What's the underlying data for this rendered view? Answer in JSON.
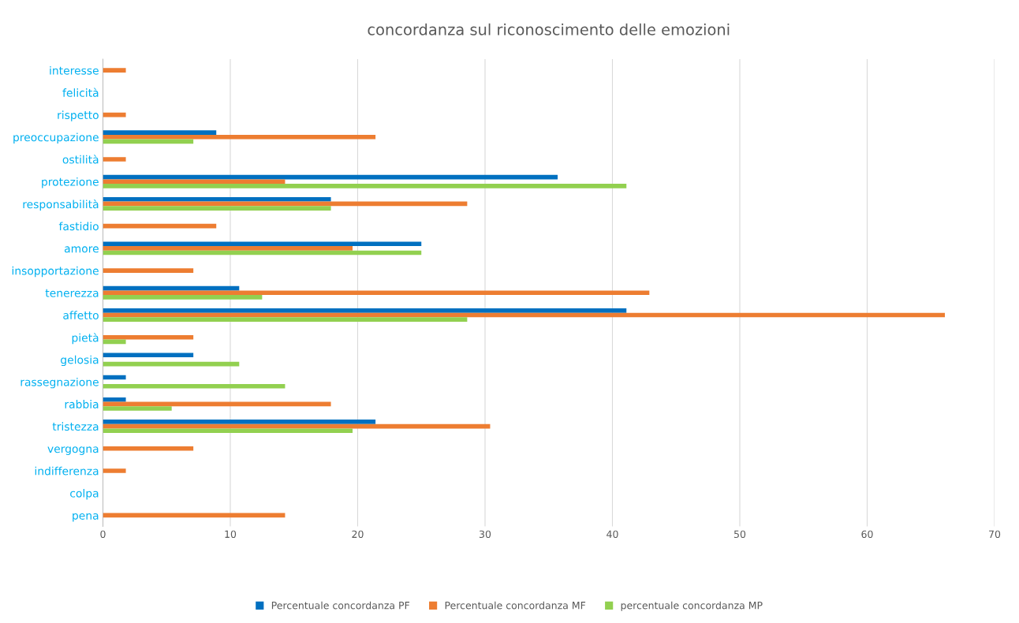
{
  "chart_data": {
    "type": "bar",
    "orientation": "horizontal",
    "title": "concordanza sul riconoscimento delle emozioni",
    "categories": [
      "interesse",
      "felicità",
      "rispetto",
      "preoccupazione",
      "ostilità",
      "protezione",
      "responsabilità",
      "fastidio",
      "amore",
      "insopportazione",
      "tenerezza",
      "affetto",
      "pietà",
      "gelosia",
      "rassegnazione",
      "rabbia",
      "tristezza",
      "vergogna",
      "indifferenza",
      "colpa",
      "pena"
    ],
    "series": [
      {
        "name": "Percentuale concordanza PF",
        "color": "#0070c0",
        "values": [
          0,
          0,
          0,
          8.9,
          0,
          35.7,
          17.9,
          0,
          25,
          0,
          10.7,
          41.1,
          0,
          7.1,
          1.8,
          1.8,
          21.4,
          0,
          0,
          0,
          0
        ]
      },
      {
        "name": "Percentuale concordanza MF",
        "color": "#ed7d31",
        "values": [
          1.8,
          0,
          1.8,
          21.4,
          1.8,
          14.3,
          28.6,
          8.9,
          19.6,
          7.1,
          42.9,
          66.1,
          7.1,
          0,
          0,
          17.9,
          30.4,
          7.1,
          1.8,
          0,
          14.3
        ]
      },
      {
        "name": "percentuale concordanza MP",
        "color": "#92d050",
        "values": [
          0,
          0,
          0,
          7.1,
          0,
          41.1,
          17.9,
          0,
          25,
          0,
          12.5,
          28.6,
          1.8,
          10.7,
          14.3,
          5.4,
          19.6,
          0,
          0,
          0,
          0
        ]
      }
    ],
    "xlim": [
      0,
      70
    ],
    "xticks": [
      0,
      10,
      20,
      30,
      40,
      50,
      60,
      70
    ],
    "grid": "x",
    "legend": "bottom"
  }
}
